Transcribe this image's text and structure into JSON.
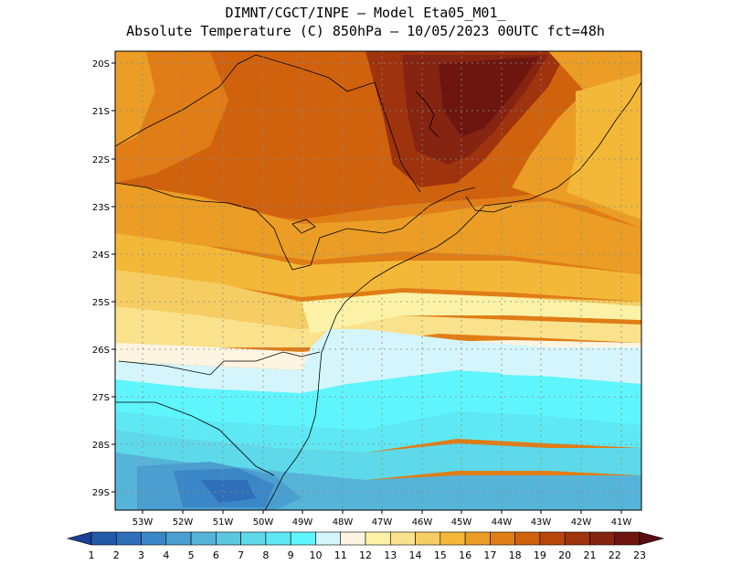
{
  "title_line1": "DIMNT/CGCT/INPE –  Model Eta05_M01_",
  "title_line2": "Absolute Temperature (C) 850hPa –  10/05/2023 00UTC fct=48h",
  "lat_labels": [
    "20S",
    "21S",
    "22S",
    "23S",
    "24S",
    "25S",
    "26S",
    "27S",
    "28S",
    "29S"
  ],
  "lon_labels": [
    "53W",
    "52W",
    "51W",
    "50W",
    "49W",
    "48W",
    "47W",
    "46W",
    "45W",
    "44W",
    "43W",
    "42W",
    "41W"
  ],
  "colorbar": {
    "labels": [
      "1",
      "2",
      "3",
      "4",
      "5",
      "6",
      "7",
      "8",
      "9",
      "10",
      "11",
      "12",
      "13",
      "14",
      "15",
      "16",
      "17",
      "18",
      "19",
      "20",
      "21",
      "22",
      "23"
    ],
    "colors": [
      "#1b3f92",
      "#2458a8",
      "#2f6fb9",
      "#3b86c6",
      "#4a9ed0",
      "#56b4d8",
      "#5dc7e0",
      "#5ed9ea",
      "#5ee8f4",
      "#5ff5fd",
      "#d4f5fb",
      "#fdf4e1",
      "#fbf2a7",
      "#fae18c",
      "#f5cd62",
      "#f3b838",
      "#eb9d25",
      "#e07d16",
      "#d0620e",
      "#b9470b",
      "#9f330e",
      "#852411",
      "#6d160f",
      "#5a0d12"
    ]
  }
}
